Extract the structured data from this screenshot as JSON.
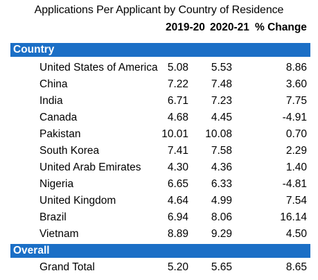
{
  "title": "Applications Per Applicant by Country of Residence",
  "columns": {
    "col1": "2019-20",
    "col2": "2020-21",
    "col3": "% Change"
  },
  "sections": {
    "country": "Country",
    "overall": "Overall"
  },
  "rows": [
    {
      "name": "United States of America",
      "y2019": "5.08",
      "y2020": "5.53",
      "change": "8.86"
    },
    {
      "name": "China",
      "y2019": "7.22",
      "y2020": "7.48",
      "change": "3.60"
    },
    {
      "name": "India",
      "y2019": "6.71",
      "y2020": "7.23",
      "change": "7.75"
    },
    {
      "name": "Canada",
      "y2019": "4.68",
      "y2020": "4.45",
      "change": "-4.91"
    },
    {
      "name": "Pakistan",
      "y2019": "10.01",
      "y2020": "10.08",
      "change": "0.70"
    },
    {
      "name": "South Korea",
      "y2019": "7.41",
      "y2020": "7.58",
      "change": "2.29"
    },
    {
      "name": "United Arab Emirates",
      "y2019": "4.30",
      "y2020": "4.36",
      "change": "1.40"
    },
    {
      "name": "Nigeria",
      "y2019": "6.65",
      "y2020": "6.33",
      "change": "-4.81"
    },
    {
      "name": "United Kingdom",
      "y2019": "4.64",
      "y2020": "4.99",
      "change": "7.54"
    },
    {
      "name": "Brazil",
      "y2019": "6.94",
      "y2020": "8.06",
      "change": "16.14"
    },
    {
      "name": "Vietnam",
      "y2019": "8.89",
      "y2020": "9.29",
      "change": "4.50"
    }
  ],
  "total": {
    "name": "Grand Total",
    "y2019": "5.20",
    "y2020": "5.65",
    "change": "8.65"
  },
  "colors": {
    "band": "#1b6fc6",
    "band_text": "#ffffff"
  }
}
